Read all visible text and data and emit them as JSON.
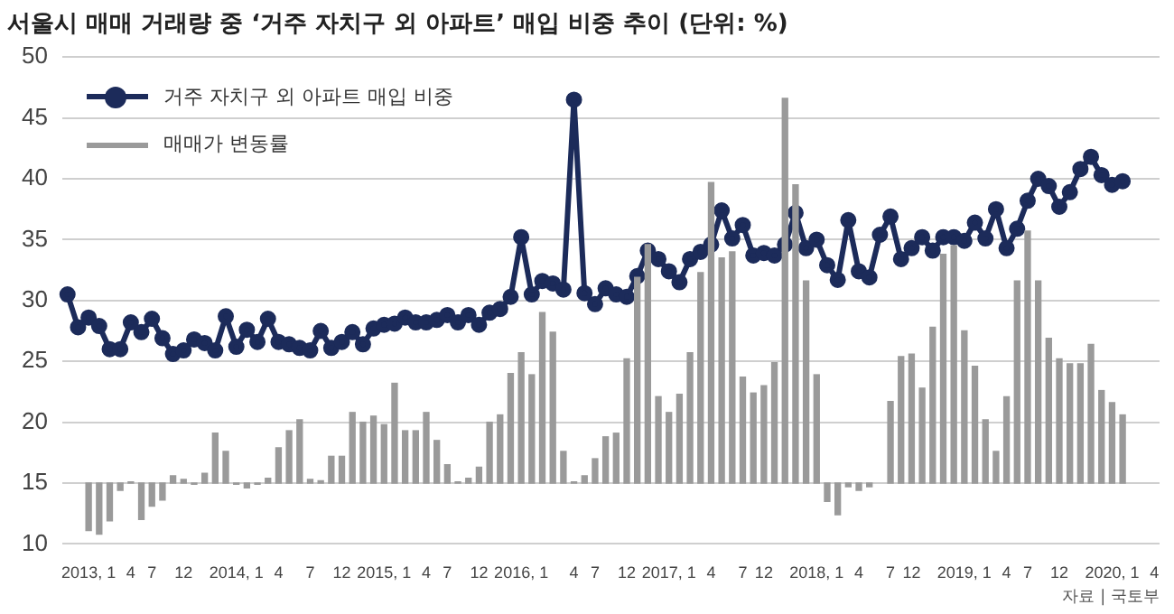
{
  "chart_data": {
    "type": "bar",
    "title": "서울시 매매 거래량 중 ‘거주 자치구 외 아파트’ 매입 비중 추이 (단위: %)",
    "categories": [
      null,
      null,
      "2013, 1",
      null,
      null,
      null,
      "4",
      null,
      "7",
      null,
      null,
      "12",
      null,
      null,
      null,
      null,
      "2014, 1",
      null,
      null,
      null,
      "4",
      null,
      null,
      "7",
      null,
      null,
      "12",
      null,
      null,
      null,
      "2015, 1",
      null,
      null,
      null,
      "4",
      null,
      "7",
      null,
      null,
      "12",
      null,
      null,
      null,
      "2016, 1",
      null,
      null,
      null,
      null,
      "4",
      null,
      "7",
      null,
      null,
      "12",
      null,
      null,
      null,
      "2017, 1",
      null,
      null,
      null,
      "4",
      null,
      null,
      "7",
      null,
      "12",
      null,
      null,
      null,
      null,
      "2018, 1",
      null,
      null,
      null,
      "4",
      null,
      null,
      "7",
      null,
      "12",
      null,
      null,
      null,
      null,
      "2019, 1",
      null,
      null,
      null,
      "4",
      null,
      "7",
      null,
      null,
      "12",
      null,
      null,
      null,
      null,
      "2020, 1",
      null,
      null,
      null,
      "4"
    ],
    "series": [
      {
        "name": "거주 자치구 외 아파트 매입 비중",
        "type": "line",
        "color": "#1c2b5a",
        "values": [
          30.5,
          27.8,
          28.6,
          27.9,
          26.0,
          26.0,
          28.2,
          27.4,
          28.5,
          26.9,
          25.6,
          25.9,
          26.8,
          26.5,
          25.9,
          28.7,
          26.2,
          27.6,
          26.6,
          28.5,
          26.6,
          26.4,
          26.1,
          25.9,
          27.5,
          26.1,
          26.6,
          27.4,
          26.4,
          27.7,
          28.0,
          28.1,
          28.6,
          28.2,
          28.2,
          28.4,
          28.8,
          28.2,
          28.8,
          28.0,
          29.0,
          29.3,
          30.3,
          35.2,
          30.5,
          31.6,
          31.4,
          30.9,
          46.5,
          30.6,
          29.7,
          31.0,
          30.5,
          30.3,
          32.0,
          34.1,
          33.4,
          32.4,
          31.5,
          33.4,
          34.0,
          34.6,
          37.4,
          35.1,
          36.2,
          33.7,
          33.9,
          33.7,
          34.6,
          37.2,
          34.3,
          35.0,
          32.9,
          31.7,
          36.6,
          32.4,
          31.9,
          35.4,
          36.9,
          33.4,
          34.3,
          35.2,
          34.1,
          35.2,
          35.2,
          34.9,
          36.4,
          35.1,
          37.5,
          34.3,
          35.9,
          38.2,
          40.0,
          39.4,
          37.7,
          38.9,
          40.8,
          41.8,
          40.3,
          39.5,
          39.8,
          null,
          null,
          null
        ]
      },
      {
        "name": "매매가 변동률",
        "color": "#9a9a9a",
        "values": [
          null,
          null,
          -3.9,
          -4.2,
          -3.1,
          -0.6,
          0.1,
          -3.0,
          -1.9,
          -1.4,
          0.6,
          0.3,
          -0.1,
          0.8,
          4.1,
          2.6,
          -0.1,
          -0.4,
          -0.1,
          0.4,
          2.9,
          4.3,
          5.2,
          0.3,
          0.2,
          2.2,
          2.2,
          5.8,
          5.0,
          5.5,
          4.8,
          8.2,
          4.3,
          4.3,
          5.8,
          3.5,
          1.5,
          0.1,
          0.4,
          1.3,
          5.0,
          5.6,
          9.0,
          10.7,
          8.9,
          14.0,
          12.4,
          2.6,
          0.1,
          0.6,
          2.0,
          3.8,
          4.1,
          10.2,
          16.9,
          19.6,
          7.1,
          5.8,
          7.3,
          10.7,
          17.3,
          24.7,
          18.5,
          19.0,
          8.7,
          7.4,
          8.0,
          9.9,
          31.6,
          24.5,
          16.6,
          8.9,
          -1.5,
          -2.6,
          -0.3,
          -0.6,
          -0.3,
          null,
          6.7,
          10.4,
          10.6,
          7.8,
          12.8,
          18.8,
          19.5,
          12.5,
          9.6,
          5.2,
          2.6,
          7.1,
          16.6,
          20.7,
          16.6,
          11.9,
          10.2,
          9.8,
          9.8,
          11.4,
          7.6,
          6.6,
          5.6,
          null,
          null,
          null
        ],
        "base": [
          null,
          null,
          15,
          15,
          15,
          15,
          15,
          15,
          15,
          15,
          15,
          15,
          15,
          15,
          15,
          15,
          15,
          15,
          15,
          15,
          15,
          15,
          15,
          15,
          15,
          15,
          15,
          15,
          15,
          15,
          15,
          15,
          15,
          15,
          15,
          15,
          15,
          15,
          15,
          15,
          15,
          15,
          15,
          15,
          15,
          15,
          15,
          15,
          15,
          15,
          15,
          15,
          15,
          15,
          15,
          15,
          15,
          15,
          15,
          15,
          15,
          15,
          15,
          15,
          15,
          15,
          15,
          15,
          15,
          15,
          15,
          15,
          15,
          15,
          15,
          15,
          15,
          null,
          15,
          15,
          15,
          15,
          15,
          15,
          15,
          15,
          15,
          15,
          15,
          15,
          15,
          15,
          15,
          15,
          15,
          15,
          15,
          15,
          15,
          15,
          15,
          null,
          null,
          null
        ]
      }
    ],
    "ylim": [
      10,
      50
    ],
    "yticks": [
      10,
      15,
      20,
      25,
      30,
      35,
      40,
      45,
      50
    ],
    "grid": "y",
    "legend": "top left",
    "marker": "circle",
    "annotations": [
      "자료 | 국토부"
    ]
  }
}
